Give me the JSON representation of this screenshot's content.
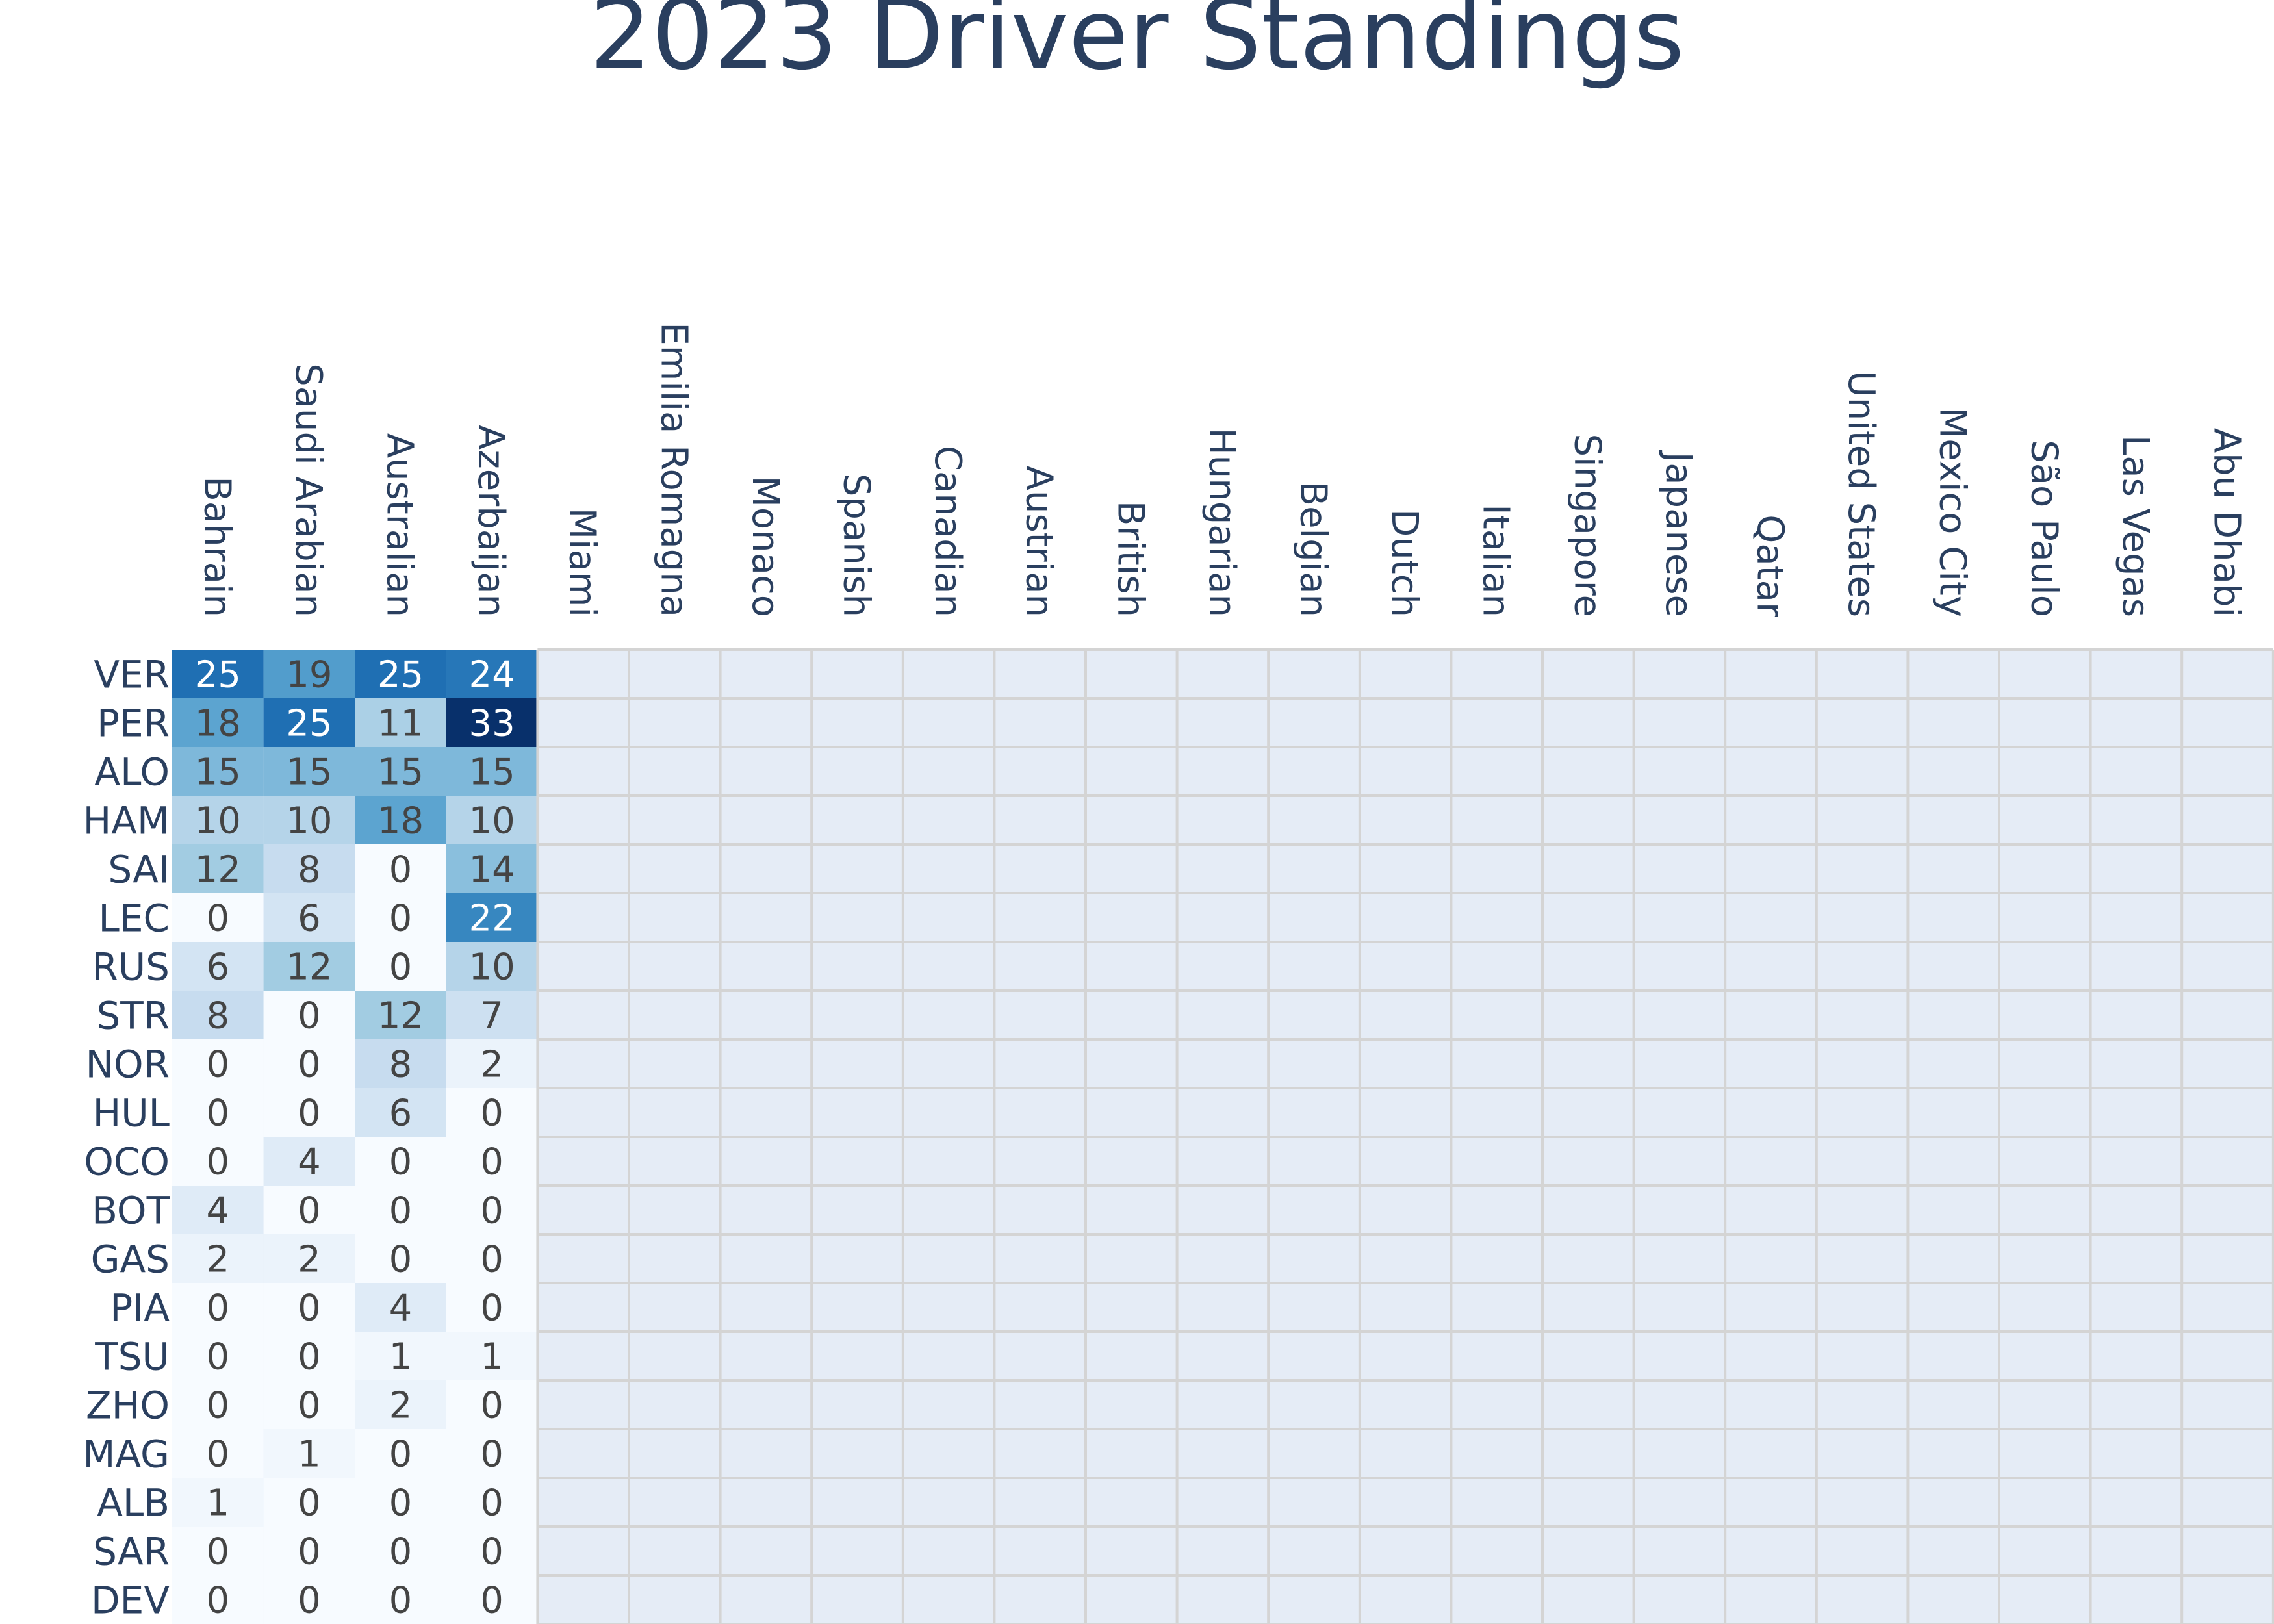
{
  "chart_data": {
    "type": "heatmap",
    "title": "2023 Driver Standings",
    "x": [
      "Bahrain",
      "Saudi Arabian",
      "Australian",
      "Azerbaijan",
      "Miami",
      "Emilia Romagna",
      "Monaco",
      "Spanish",
      "Canadian",
      "Austrian",
      "British",
      "Hungarian",
      "Belgian",
      "Dutch",
      "Italian",
      "Singapore",
      "Japanese",
      "Qatar",
      "United States",
      "Mexico City",
      "São Paulo",
      "Las Vegas",
      "Abu Dhabi"
    ],
    "y": [
      "VER",
      "PER",
      "ALO",
      "HAM",
      "SAI",
      "LEC",
      "RUS",
      "STR",
      "NOR",
      "HUL",
      "OCO",
      "BOT",
      "GAS",
      "PIA",
      "TSU",
      "ZHO",
      "MAG",
      "ALB",
      "SAR",
      "DEV"
    ],
    "z": [
      [
        25,
        19,
        25,
        24
      ],
      [
        18,
        25,
        11,
        33
      ],
      [
        15,
        15,
        15,
        15
      ],
      [
        10,
        10,
        18,
        10
      ],
      [
        12,
        8,
        0,
        14
      ],
      [
        0,
        6,
        0,
        22
      ],
      [
        6,
        12,
        0,
        10
      ],
      [
        8,
        0,
        12,
        7
      ],
      [
        0,
        0,
        8,
        2
      ],
      [
        0,
        0,
        6,
        0
      ],
      [
        0,
        4,
        0,
        0
      ],
      [
        4,
        0,
        0,
        0
      ],
      [
        2,
        2,
        0,
        0
      ],
      [
        0,
        0,
        4,
        0
      ],
      [
        0,
        0,
        1,
        1
      ],
      [
        0,
        0,
        2,
        0
      ],
      [
        0,
        1,
        0,
        0
      ],
      [
        1,
        0,
        0,
        0
      ],
      [
        0,
        0,
        0,
        0
      ],
      [
        0,
        0,
        0,
        0
      ]
    ],
    "colorscale": "Blues",
    "zrange": [
      0,
      33
    ],
    "empty_cell_color": "#e5ecf6",
    "grid_color": "#d4d4d4",
    "text_color_dark": "#444444",
    "text_color_light": "#ffffff",
    "grid": true,
    "legend": "none"
  }
}
